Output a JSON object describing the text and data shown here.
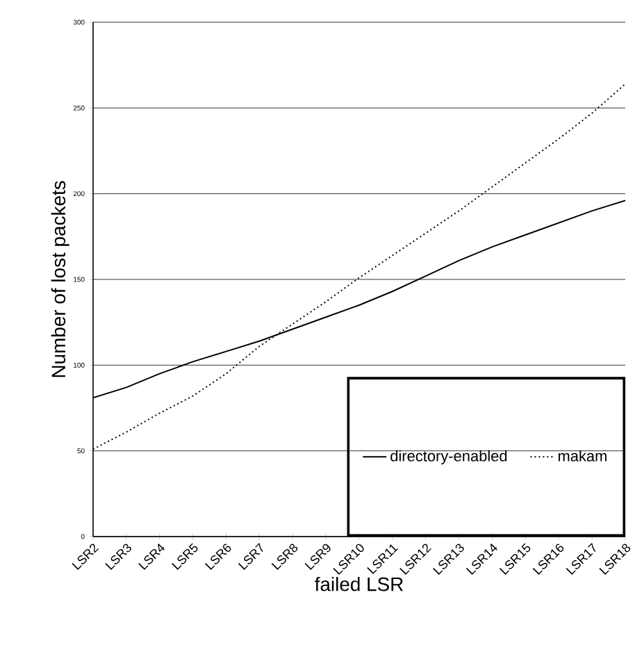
{
  "chart_data": {
    "type": "line",
    "xlabel": "failed LSR",
    "ylabel": "Number of lost packets",
    "categories": [
      "LSR2",
      "LSR3",
      "LSR4",
      "LSR5",
      "LSR6",
      "LSR7",
      "LSR8",
      "LSR9",
      "LSR10",
      "LSR11",
      "LSR12",
      "LSR13",
      "LSR14",
      "LSR15",
      "LSR16",
      "LSR17",
      "LSR18"
    ],
    "series": [
      {
        "name": "directory-enabled",
        "color": "#000000",
        "line_style": "solid",
        "values": [
          81,
          87,
          95,
          102,
          108,
          114,
          121,
          128,
          135,
          143,
          152,
          161,
          169,
          176,
          183,
          190,
          196
        ]
      },
      {
        "name": "makam",
        "color": "#000000",
        "line_style": "dotted",
        "values": [
          51,
          61,
          72,
          82,
          95,
          111,
          124,
          137,
          151,
          164,
          177,
          190,
          204,
          218,
          232,
          247,
          264
        ]
      }
    ],
    "ylim": [
      0,
      300
    ],
    "yticks": [
      0,
      50,
      100,
      150,
      200,
      250,
      300
    ],
    "grid": "y",
    "legend": "bottom right",
    "marker": "none"
  }
}
